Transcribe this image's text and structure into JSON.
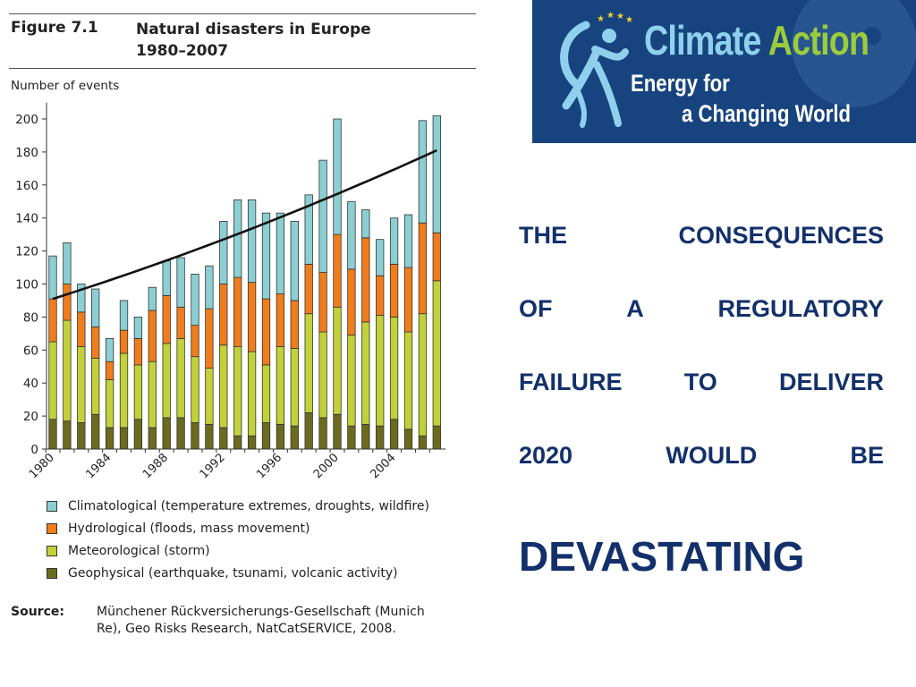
{
  "figure": {
    "label": "Figure 7.1",
    "title_lines": [
      "Natural disasters in Europe",
      "1980–2007"
    ],
    "y_unit": "Number of events"
  },
  "chart_data": {
    "type": "bar",
    "stacked": true,
    "ylabel": "Number of events",
    "ylim": [
      0,
      210
    ],
    "yticks": [
      0,
      20,
      40,
      60,
      80,
      100,
      120,
      140,
      160,
      180,
      200
    ],
    "x": [
      1980,
      1981,
      1982,
      1983,
      1984,
      1985,
      1986,
      1987,
      1988,
      1989,
      1990,
      1991,
      1992,
      1993,
      1994,
      1995,
      1996,
      1997,
      1998,
      1999,
      2000,
      2001,
      2002,
      2003,
      2004,
      2005,
      2006,
      2007
    ],
    "xtick_labels": [
      "1980",
      "1984",
      "1988",
      "1992",
      "1996",
      "2000",
      "2004"
    ],
    "series": [
      {
        "name": "Geophysical (earthquake, tsunami, volcanic activity)",
        "color": "#6b6b1f",
        "values": [
          18,
          17,
          16,
          21,
          13,
          13,
          18,
          13,
          19,
          19,
          16,
          15,
          13,
          8,
          8,
          16,
          15,
          14,
          22,
          19,
          21,
          14,
          15,
          14,
          18,
          12,
          8,
          14
        ]
      },
      {
        "name": "Meteorological (storm)",
        "color": "#c2d13a",
        "values": [
          47,
          61,
          46,
          34,
          29,
          45,
          33,
          40,
          45,
          48,
          40,
          34,
          50,
          54,
          51,
          35,
          47,
          47,
          60,
          52,
          65,
          55,
          62,
          67,
          62,
          59,
          74,
          88
        ]
      },
      {
        "name": "Hydrological (floods, mass movement)",
        "color": "#f07d1b",
        "values": [
          26,
          22,
          21,
          19,
          11,
          14,
          16,
          31,
          29,
          19,
          19,
          36,
          37,
          42,
          42,
          40,
          32,
          29,
          30,
          36,
          44,
          40,
          51,
          24,
          32,
          39,
          55,
          29
        ]
      },
      {
        "name": "Climatological (temperature extremes, droughts, wildfire)",
        "color": "#8ccfd2",
        "values": [
          26,
          25,
          17,
          23,
          14,
          18,
          13,
          14,
          21,
          30,
          31,
          26,
          38,
          47,
          50,
          52,
          49,
          48,
          42,
          68,
          70,
          41,
          17,
          22,
          28,
          32,
          62,
          71
        ]
      }
    ],
    "trend": {
      "from": [
        1980,
        91
      ],
      "to": [
        2007,
        181
      ],
      "shape": "slightly convex"
    }
  },
  "legend_order": [
    3,
    2,
    1,
    0
  ],
  "source": {
    "label": "Source:",
    "lines": [
      "Münchener Rückversicherungs-Gesellschaft (Munich",
      "Re), Geo Risks Research, NatCatSERVICE, 2008."
    ]
  },
  "banner": {
    "title_word1": "Climate",
    "title_word2": "Action",
    "subtitle_line1": "Energy for",
    "subtitle_line2": "a Changing World",
    "background": "#17447f",
    "accent_blue": "#8fd1ec",
    "accent_green": "#9ccc3c",
    "star_color": "#f3d131"
  },
  "headline": {
    "lines": [
      [
        "THE",
        "CONSEQUENCES"
      ],
      [
        "OF",
        "A",
        "REGULATORY"
      ],
      [
        "FAILURE",
        "TO",
        "DELIVER"
      ],
      [
        "2020",
        "WOULD",
        "BE"
      ]
    ],
    "emphasis": "DEVASTATING",
    "color": "#13306b"
  }
}
